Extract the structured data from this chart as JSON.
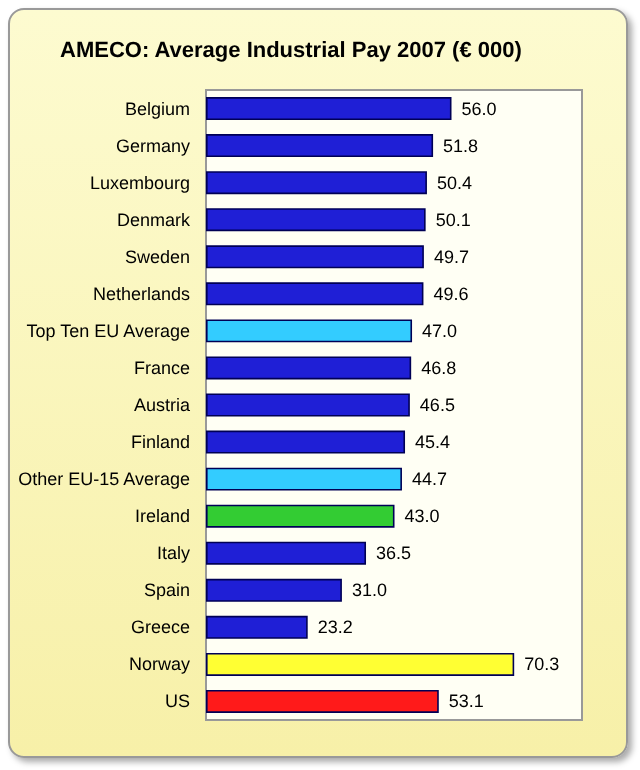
{
  "chart_data": {
    "type": "bar",
    "orientation": "horizontal",
    "title": "AMECO: Average Industrial Pay 2007 (€ 000)",
    "categories": [
      "Belgium",
      "Germany",
      "Luxembourg",
      "Denmark",
      "Sweden",
      "Netherlands",
      "Top Ten EU Average",
      "France",
      "Austria",
      "Finland",
      "Other EU-15 Average",
      "Ireland",
      "Italy",
      "Spain",
      "Greece",
      "Norway",
      "US"
    ],
    "values": [
      56.0,
      51.8,
      50.4,
      50.1,
      49.7,
      49.6,
      47.0,
      46.8,
      46.5,
      45.4,
      44.7,
      43.0,
      36.5,
      31.0,
      23.2,
      70.3,
      53.1
    ],
    "value_labels": [
      "56.0",
      "51.8",
      "50.4",
      "50.1",
      "49.7",
      "49.6",
      "47.0",
      "46.8",
      "46.5",
      "45.4",
      "44.7",
      "43.0",
      "36.5",
      "31.0",
      "23.2",
      "70.3",
      "53.1"
    ],
    "colors": [
      "#1f1fd6",
      "#1f1fd6",
      "#1f1fd6",
      "#1f1fd6",
      "#1f1fd6",
      "#1f1fd6",
      "#33ccff",
      "#1f1fd6",
      "#1f1fd6",
      "#1f1fd6",
      "#33ccff",
      "#33cc33",
      "#1f1fd6",
      "#1f1fd6",
      "#1f1fd6",
      "#ffff33",
      "#ff1a1a"
    ],
    "tick_labels": "y"
  }
}
